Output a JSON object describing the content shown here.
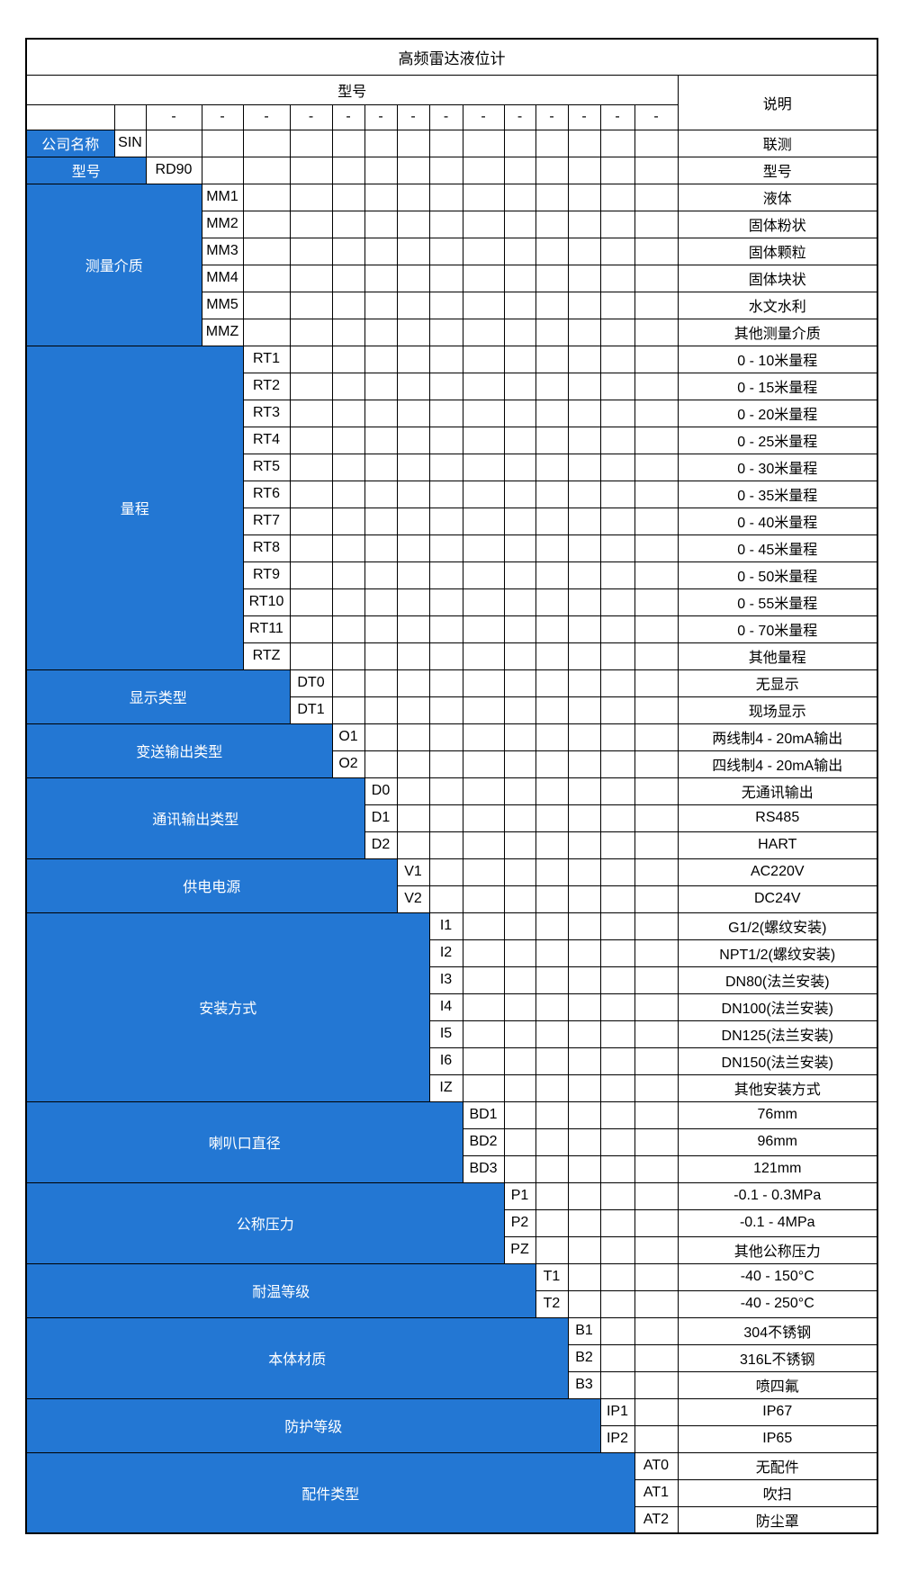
{
  "title": "高频雷达液位计",
  "header": {
    "model": "型号",
    "description": "说明",
    "dash": "-"
  },
  "colors": {
    "group_bg": "#2377d3",
    "group_text": "#ffffff",
    "border": "#000000"
  },
  "groups": [
    {
      "label": "公司名称",
      "options": [
        {
          "code": "SIN",
          "desc": "联测"
        }
      ]
    },
    {
      "label": "型号",
      "options": [
        {
          "code": "RD90",
          "desc": "型号"
        }
      ]
    },
    {
      "label": "测量介质",
      "options": [
        {
          "code": "MM1",
          "desc": "液体"
        },
        {
          "code": "MM2",
          "desc": "固体粉状"
        },
        {
          "code": "MM3",
          "desc": "固体颗粒"
        },
        {
          "code": "MM4",
          "desc": "固体块状"
        },
        {
          "code": "MM5",
          "desc": "水文水利"
        },
        {
          "code": "MMZ",
          "desc": "其他测量介质"
        }
      ]
    },
    {
      "label": "量程",
      "options": [
        {
          "code": "RT1",
          "desc": "0 - 10米量程"
        },
        {
          "code": "RT2",
          "desc": "0 - 15米量程"
        },
        {
          "code": "RT3",
          "desc": "0 - 20米量程"
        },
        {
          "code": "RT4",
          "desc": "0 - 25米量程"
        },
        {
          "code": "RT5",
          "desc": "0 - 30米量程"
        },
        {
          "code": "RT6",
          "desc": "0 - 35米量程"
        },
        {
          "code": "RT7",
          "desc": "0 - 40米量程"
        },
        {
          "code": "RT8",
          "desc": "0 - 45米量程"
        },
        {
          "code": "RT9",
          "desc": "0 - 50米量程"
        },
        {
          "code": "RT10",
          "desc": "0 - 55米量程"
        },
        {
          "code": "RT11",
          "desc": "0 - 70米量程"
        },
        {
          "code": "RTZ",
          "desc": "其他量程"
        }
      ]
    },
    {
      "label": "显示类型",
      "options": [
        {
          "code": "DT0",
          "desc": "无显示"
        },
        {
          "code": "DT1",
          "desc": "现场显示"
        }
      ]
    },
    {
      "label": "变送输出类型",
      "options": [
        {
          "code": "O1",
          "desc": "两线制4 - 20mA输出"
        },
        {
          "code": "O2",
          "desc": "四线制4 - 20mA输出"
        }
      ]
    },
    {
      "label": "通讯输出类型",
      "options": [
        {
          "code": "D0",
          "desc": "无通讯输出"
        },
        {
          "code": "D1",
          "desc": "RS485"
        },
        {
          "code": "D2",
          "desc": "HART"
        }
      ]
    },
    {
      "label": "供电电源",
      "options": [
        {
          "code": "V1",
          "desc": "AC220V"
        },
        {
          "code": "V2",
          "desc": "DC24V"
        }
      ]
    },
    {
      "label": "安装方式",
      "options": [
        {
          "code": "I1",
          "desc": "G1/2(螺纹安装)"
        },
        {
          "code": "I2",
          "desc": "NPT1/2(螺纹安装)"
        },
        {
          "code": "I3",
          "desc": "DN80(法兰安装)"
        },
        {
          "code": "I4",
          "desc": "DN100(法兰安装)"
        },
        {
          "code": "I5",
          "desc": "DN125(法兰安装)"
        },
        {
          "code": "I6",
          "desc": "DN150(法兰安装)"
        },
        {
          "code": "IZ",
          "desc": "其他安装方式"
        }
      ]
    },
    {
      "label": "喇叭口直径",
      "options": [
        {
          "code": "BD1",
          "desc": "76mm"
        },
        {
          "code": "BD2",
          "desc": "96mm"
        },
        {
          "code": "BD3",
          "desc": "121mm"
        }
      ]
    },
    {
      "label": "公称压力",
      "options": [
        {
          "code": "P1",
          "desc": "-0.1 - 0.3MPa"
        },
        {
          "code": "P2",
          "desc": "-0.1 - 4MPa"
        },
        {
          "code": "PZ",
          "desc": "其他公称压力"
        }
      ]
    },
    {
      "label": "耐温等级",
      "options": [
        {
          "code": "T1",
          "desc": "-40 - 150°C"
        },
        {
          "code": "T2",
          "desc": "-40 - 250°C"
        }
      ]
    },
    {
      "label": "本体材质",
      "options": [
        {
          "code": "B1",
          "desc": "304不锈钢"
        },
        {
          "code": "B2",
          "desc": "316L不锈钢"
        },
        {
          "code": "B3",
          "desc": "喷四氟"
        }
      ]
    },
    {
      "label": "防护等级",
      "options": [
        {
          "code": "IP1",
          "desc": "IP67"
        },
        {
          "code": "IP2",
          "desc": "IP65"
        }
      ]
    },
    {
      "label": "配件类型",
      "options": [
        {
          "code": "AT0",
          "desc": "无配件"
        },
        {
          "code": "AT1",
          "desc": "吹扫"
        },
        {
          "code": "AT2",
          "desc": "防尘罩"
        }
      ]
    }
  ]
}
